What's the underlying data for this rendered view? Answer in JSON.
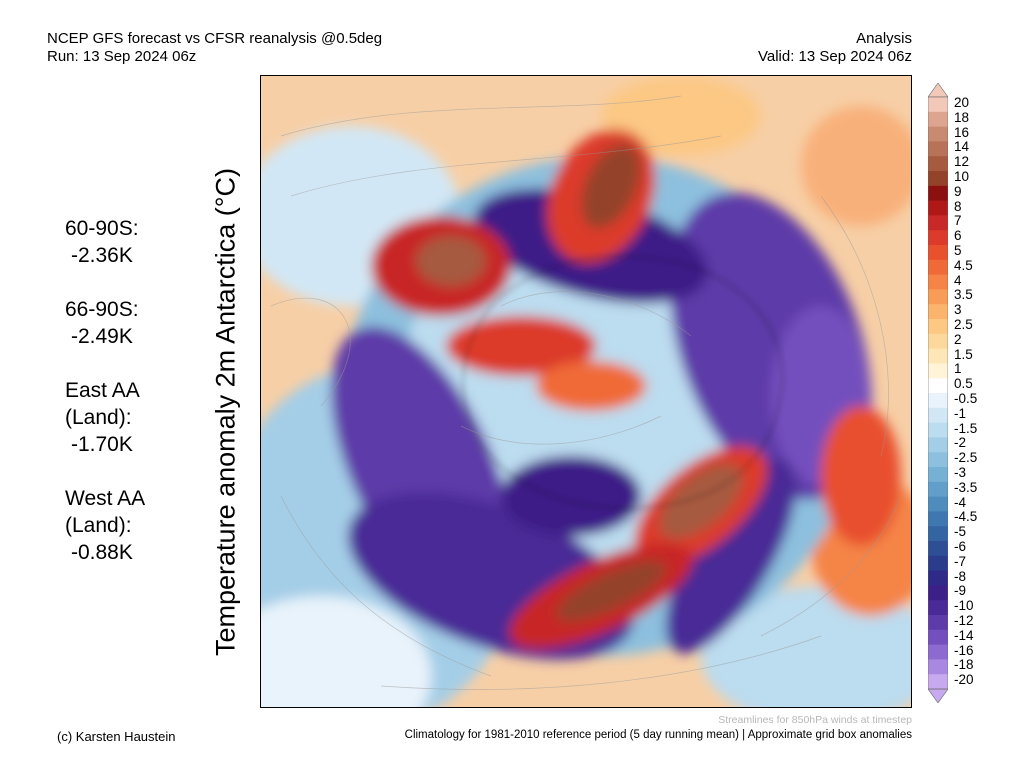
{
  "header": {
    "title": "NCEP GFS forecast vs CFSR reanalysis @0.5deg",
    "run": "Run: 13 Sep 2024 06z",
    "mode": "Analysis",
    "valid": "Valid: 13 Sep 2024 06z"
  },
  "y_axis_label": "Temperature anomaly 2m Antarctica (°C)",
  "stats": [
    {
      "label": "60-90S:",
      "value": "-2.36K"
    },
    {
      "label": "66-90S:",
      "value": "-2.49K"
    },
    {
      "label": "East AA\n(Land):",
      "value": "-1.70K"
    },
    {
      "label": "West AA\n(Land):",
      "value": "-0.88K"
    }
  ],
  "colorbar": {
    "ticks": [
      "20",
      "18",
      "16",
      "14",
      "12",
      "10",
      "9",
      "8",
      "7",
      "6",
      "5",
      "4.5",
      "4",
      "3.5",
      "3",
      "2.5",
      "2",
      "1.5",
      "1",
      "0.5",
      "-0.5",
      "-1",
      "-1.5",
      "-2",
      "-2.5",
      "-3",
      "-3.5",
      "-4",
      "-4.5",
      "-5",
      "-6",
      "-7",
      "-8",
      "-9",
      "-10",
      "-12",
      "-14",
      "-16",
      "-18",
      "-20"
    ],
    "colors": [
      "#f2c8b8",
      "#dda58f",
      "#c98a72",
      "#b87258",
      "#a65a40",
      "#94432b",
      "#8c1010",
      "#b01818",
      "#c82828",
      "#dc3a2a",
      "#e8502e",
      "#f06a38",
      "#f58446",
      "#f89d58",
      "#fbb46c",
      "#fcc884",
      "#fdd89c",
      "#fee6b6",
      "#fff3d8",
      "#ffffff",
      "#e8f3fb",
      "#d2e7f5",
      "#bcdcef",
      "#a4cee7",
      "#8dc0de",
      "#76b0d4",
      "#619fca",
      "#4e8cbe",
      "#3f78b0",
      "#3464a2",
      "#2e4f96",
      "#2b3c8c",
      "#2f2a88",
      "#3c1f87",
      "#4a2a96",
      "#5d3ba8",
      "#7350bd",
      "#8c6ad0",
      "#a888e0",
      "#c6a9ee"
    ]
  },
  "footer": {
    "credit": "(c) Karsten Haustein",
    "note": "Climatology for 1981-2010 reference period (5 day running mean) | Approximate grid box anomalies",
    "streamlines": "Streamlines for 850hPa winds at timestep"
  }
}
